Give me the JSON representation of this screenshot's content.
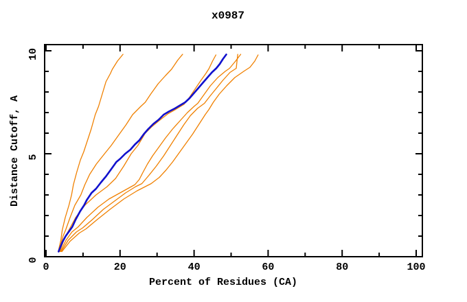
{
  "chart_data": {
    "type": "line",
    "title": "x0987",
    "xlabel": "Percent of Residues (CA)",
    "ylabel": "Distance Cutoff, A",
    "xlim": [
      0,
      100
    ],
    "ylim": [
      0,
      10.3
    ],
    "x_ticks_major": [
      0,
      20,
      40,
      60,
      80,
      100
    ],
    "x_ticks_minor": [
      10,
      30,
      50,
      70,
      90
    ],
    "y_ticks_major": [
      0,
      5,
      10
    ],
    "y_ticks_minor": [
      1,
      2,
      3,
      4,
      6,
      7,
      8,
      9
    ],
    "grid": false,
    "legend_position": "none",
    "frame_color": "#000000",
    "colors": {
      "main_curve": "#1111cd",
      "comparison_curves": "#f08000"
    },
    "series": [
      {
        "name": "orange-1",
        "color": "#f08000",
        "width": 1.3,
        "points": [
          [
            3.3,
            0.25
          ],
          [
            4.0,
            0.8
          ],
          [
            4.4,
            1.3
          ],
          [
            5.2,
            1.9
          ],
          [
            6.2,
            2.5
          ],
          [
            6.9,
            3.0
          ],
          [
            7.4,
            3.5
          ],
          [
            8.3,
            4.1
          ],
          [
            9.3,
            4.7
          ],
          [
            10.2,
            5.1
          ],
          [
            11.3,
            5.7
          ],
          [
            12.2,
            6.2
          ],
          [
            13.3,
            6.9
          ],
          [
            14.2,
            7.3
          ],
          [
            15.2,
            7.9
          ],
          [
            16.2,
            8.5
          ],
          [
            17.4,
            8.9
          ],
          [
            17.9,
            9.1
          ],
          [
            19.3,
            9.5
          ],
          [
            20.8,
            9.83
          ]
        ]
      },
      {
        "name": "orange-2",
        "color": "#f08000",
        "width": 1.3,
        "points": [
          [
            3.5,
            0.25
          ],
          [
            4.6,
            1.0
          ],
          [
            5.3,
            1.3
          ],
          [
            6.5,
            1.9
          ],
          [
            7.8,
            2.5
          ],
          [
            9.4,
            3.0
          ],
          [
            10.5,
            3.5
          ],
          [
            11.8,
            4.0
          ],
          [
            13.6,
            4.5
          ],
          [
            15.8,
            5.0
          ],
          [
            17.6,
            5.4
          ],
          [
            19.6,
            5.9
          ],
          [
            21.6,
            6.4
          ],
          [
            23.4,
            6.9
          ],
          [
            25.6,
            7.3
          ],
          [
            26.8,
            7.5
          ],
          [
            28.3,
            7.9
          ],
          [
            30.3,
            8.4
          ],
          [
            32.3,
            8.8
          ],
          [
            33.9,
            9.1
          ],
          [
            35.6,
            9.55
          ],
          [
            36.9,
            9.83
          ]
        ]
      },
      {
        "name": "orange-3",
        "color": "#f08000",
        "width": 1.3,
        "points": [
          [
            3.7,
            0.25
          ],
          [
            5.0,
            0.9
          ],
          [
            6.2,
            1.3
          ],
          [
            8.0,
            1.9
          ],
          [
            10.5,
            2.5
          ],
          [
            13.5,
            3.0
          ],
          [
            16.5,
            3.4
          ],
          [
            18.8,
            3.8
          ],
          [
            21.0,
            4.4
          ],
          [
            23.0,
            5.0
          ],
          [
            24.8,
            5.4
          ],
          [
            25.8,
            5.7
          ],
          [
            26.8,
            6.0
          ],
          [
            28.5,
            6.3
          ],
          [
            30.5,
            6.6
          ],
          [
            33.0,
            6.95
          ],
          [
            35.0,
            7.15
          ],
          [
            37.3,
            7.4
          ],
          [
            38.8,
            7.75
          ],
          [
            40.3,
            8.15
          ],
          [
            41.8,
            8.55
          ],
          [
            43.2,
            8.9
          ],
          [
            44.0,
            9.13
          ],
          [
            45.0,
            9.5
          ],
          [
            45.9,
            9.8
          ]
        ]
      },
      {
        "name": "orange-4",
        "color": "#f08000",
        "width": 1.3,
        "points": [
          [
            3.9,
            0.25
          ],
          [
            5.4,
            0.8
          ],
          [
            7.0,
            1.2
          ],
          [
            8.7,
            1.45
          ],
          [
            11.0,
            1.9
          ],
          [
            14.0,
            2.4
          ],
          [
            17.0,
            2.8
          ],
          [
            20.0,
            3.1
          ],
          [
            22.5,
            3.35
          ],
          [
            24.0,
            3.5
          ],
          [
            25.2,
            3.75
          ],
          [
            26.2,
            4.1
          ],
          [
            27.4,
            4.5
          ],
          [
            28.8,
            4.9
          ],
          [
            30.4,
            5.3
          ],
          [
            32.2,
            5.75
          ],
          [
            34.2,
            6.2
          ],
          [
            36.2,
            6.6
          ],
          [
            38.2,
            7.0
          ],
          [
            40.0,
            7.3
          ],
          [
            41.0,
            7.45
          ],
          [
            42.6,
            7.85
          ],
          [
            44.4,
            8.3
          ],
          [
            46.4,
            8.7
          ],
          [
            48.4,
            9.0
          ],
          [
            49.6,
            9.15
          ],
          [
            51.2,
            9.5
          ],
          [
            52.6,
            9.83
          ]
        ]
      },
      {
        "name": "orange-5",
        "color": "#f08000",
        "width": 1.3,
        "points": [
          [
            4.1,
            0.25
          ],
          [
            6.0,
            0.8
          ],
          [
            8.2,
            1.2
          ],
          [
            9.9,
            1.4
          ],
          [
            12.5,
            1.8
          ],
          [
            15.5,
            2.3
          ],
          [
            18.5,
            2.7
          ],
          [
            21.5,
            3.1
          ],
          [
            24.2,
            3.4
          ],
          [
            25.9,
            3.55
          ],
          [
            27.8,
            3.95
          ],
          [
            29.8,
            4.4
          ],
          [
            31.8,
            4.9
          ],
          [
            33.6,
            5.4
          ],
          [
            35.4,
            5.9
          ],
          [
            37.2,
            6.4
          ],
          [
            39.0,
            6.85
          ],
          [
            40.9,
            7.2
          ],
          [
            42.8,
            7.45
          ],
          [
            44.3,
            7.8
          ],
          [
            45.9,
            8.15
          ],
          [
            47.7,
            8.55
          ],
          [
            49.7,
            8.95
          ],
          [
            51.4,
            9.15
          ],
          [
            51.6,
            9.5
          ],
          [
            51.8,
            9.83
          ]
        ]
      },
      {
        "name": "orange-6",
        "color": "#f08000",
        "width": 1.3,
        "points": [
          [
            4.3,
            0.25
          ],
          [
            6.5,
            0.75
          ],
          [
            9.0,
            1.15
          ],
          [
            10.8,
            1.35
          ],
          [
            13.8,
            1.8
          ],
          [
            17.3,
            2.3
          ],
          [
            21.0,
            2.8
          ],
          [
            24.6,
            3.2
          ],
          [
            28.4,
            3.55
          ],
          [
            30.6,
            3.85
          ],
          [
            32.4,
            4.2
          ],
          [
            34.2,
            4.6
          ],
          [
            36.0,
            5.05
          ],
          [
            37.8,
            5.5
          ],
          [
            39.6,
            5.95
          ],
          [
            41.4,
            6.45
          ],
          [
            43.0,
            6.9
          ],
          [
            44.0,
            7.15
          ],
          [
            45.2,
            7.5
          ],
          [
            46.8,
            7.9
          ],
          [
            48.8,
            8.3
          ],
          [
            51.0,
            8.7
          ],
          [
            53.4,
            9.0
          ],
          [
            55.1,
            9.2
          ],
          [
            56.4,
            9.5
          ],
          [
            57.3,
            9.8
          ]
        ]
      },
      {
        "name": "blue-main",
        "color": "#1111cd",
        "width": 2.6,
        "points": [
          [
            3.4,
            0.25
          ],
          [
            4.4,
            0.7
          ],
          [
            5.3,
            1.0
          ],
          [
            6.3,
            1.25
          ],
          [
            7.1,
            1.45
          ],
          [
            8.0,
            1.8
          ],
          [
            9.2,
            2.2
          ],
          [
            10.3,
            2.5
          ],
          [
            11.0,
            2.75
          ],
          [
            12.3,
            3.1
          ],
          [
            13.5,
            3.3
          ],
          [
            14.8,
            3.6
          ],
          [
            15.5,
            3.75
          ],
          [
            16.2,
            3.9
          ],
          [
            17.6,
            4.25
          ],
          [
            19.0,
            4.6
          ],
          [
            20.0,
            4.75
          ],
          [
            21.4,
            5.0
          ],
          [
            22.8,
            5.2
          ],
          [
            24.0,
            5.45
          ],
          [
            25.2,
            5.65
          ],
          [
            26.4,
            5.95
          ],
          [
            27.6,
            6.2
          ],
          [
            29.0,
            6.45
          ],
          [
            30.4,
            6.65
          ],
          [
            31.8,
            6.9
          ],
          [
            33.2,
            7.05
          ],
          [
            34.8,
            7.2
          ],
          [
            36.2,
            7.35
          ],
          [
            37.6,
            7.5
          ],
          [
            38.8,
            7.7
          ],
          [
            40.0,
            7.95
          ],
          [
            41.2,
            8.2
          ],
          [
            42.4,
            8.45
          ],
          [
            43.6,
            8.7
          ],
          [
            44.8,
            8.95
          ],
          [
            46.0,
            9.15
          ],
          [
            46.9,
            9.35
          ],
          [
            47.8,
            9.6
          ],
          [
            48.7,
            9.82
          ]
        ]
      }
    ]
  },
  "layout_note": ""
}
